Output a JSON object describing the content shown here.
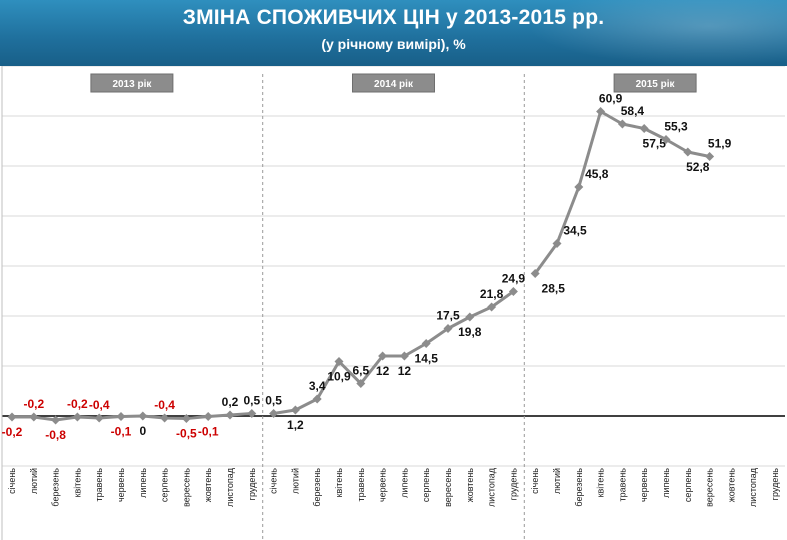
{
  "header": {
    "title": "ЗМІНА СПОЖИВЧИХ ЦІН у 2013-2015 рр.",
    "subtitle": "(у річному вимірі), %"
  },
  "colors": {
    "header": "#1f6f9c",
    "line": "#8c8c8c",
    "negative_label": "#cc0000",
    "positive_label": "#111111",
    "year_box": "#8c8c8c"
  },
  "chart_data": {
    "type": "line",
    "title": "ЗМІНА СПОЖИВЧИХ ЦІН у 2013-2015 рр.",
    "subtitle": "(у річному вимірі), %",
    "xlabel": "",
    "ylabel": "",
    "ylim": [
      -10,
      70
    ],
    "grid": "horizontal",
    "months": [
      "січень",
      "лютий",
      "березень",
      "квітень",
      "травень",
      "червень",
      "липень",
      "серпень",
      "вересень",
      "жовтень",
      "листопад",
      "грудень"
    ],
    "years": [
      {
        "label": "2013 рік",
        "values": [
          -0.2,
          -0.2,
          -0.8,
          -0.2,
          -0.4,
          -0.1,
          0,
          -0.4,
          -0.5,
          -0.1,
          0.2,
          0.5
        ],
        "labels": [
          "-0,2",
          "-0,2",
          "-0,8",
          "-0,2",
          "-0,4",
          "-0,1",
          "0",
          "-0,4",
          "-0,5",
          "-0,1",
          "0,2",
          "0,5"
        ]
      },
      {
        "label": "2014 рік",
        "values": [
          0.5,
          1.2,
          3.4,
          10.9,
          6.5,
          12,
          12,
          14.5,
          17.5,
          19.8,
          21.8,
          24.9
        ],
        "labels": [
          "0,5",
          "1,2",
          "3,4",
          "10,9",
          "6,5",
          "12",
          "12",
          "14,5",
          "17,5",
          "19,8",
          "21,8",
          "24,9"
        ]
      },
      {
        "label": "2015 рік",
        "values": [
          28.5,
          34.5,
          45.8,
          60.9,
          58.4,
          57.5,
          55.3,
          52.8,
          51.9
        ],
        "labels": [
          "28,5",
          "34,5",
          "45,8",
          "60,9",
          "58,4",
          "57,5",
          "55,3",
          "52,8",
          "51,9"
        ]
      }
    ]
  }
}
